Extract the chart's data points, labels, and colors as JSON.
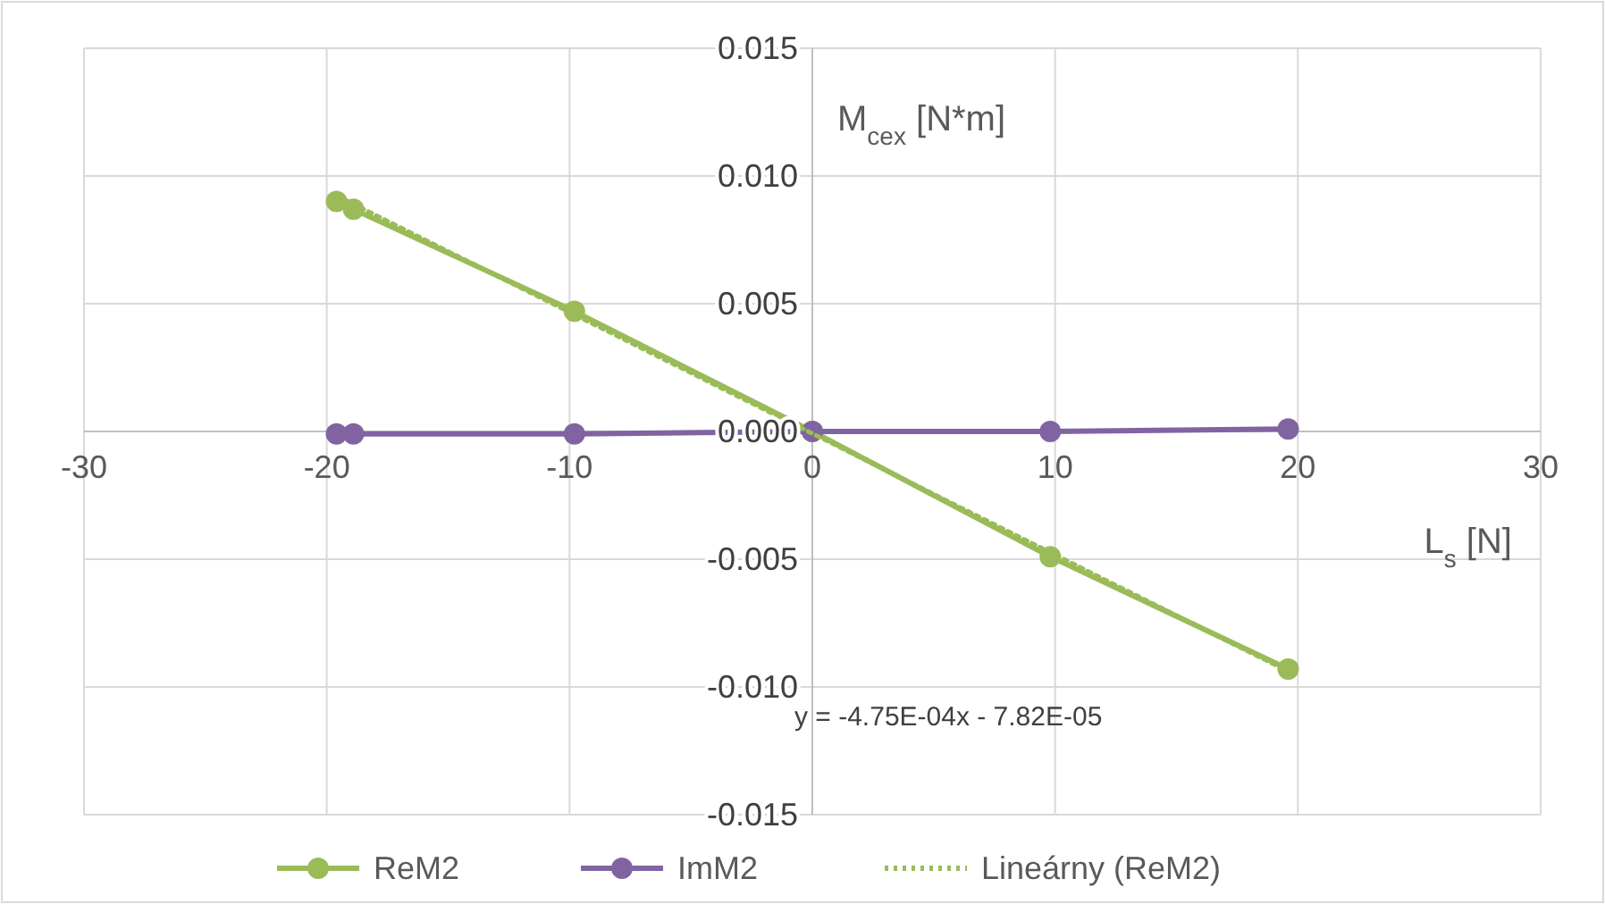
{
  "chart_data": {
    "type": "line",
    "xlabel": "L$_{s}$ [N]",
    "ylabel": "M$_{cex}$ [N*m]",
    "xlim": [
      -30,
      30
    ],
    "xticks": [
      -30,
      -20,
      -10,
      0,
      10,
      20,
      30
    ],
    "ylim": [
      -0.015,
      0.015
    ],
    "yticks": [
      {
        "value": -0.015,
        "label": "-0.015"
      },
      {
        "value": -0.01,
        "label": "-0.010"
      },
      {
        "value": -0.005,
        "label": "-0.005"
      },
      {
        "value": 0,
        "label": "0.000"
      },
      {
        "value": 0.005,
        "label": "0.005"
      },
      {
        "value": 0.01,
        "label": "0.010"
      },
      {
        "value": 0.015,
        "label": "0.015"
      }
    ],
    "grid": true,
    "legend": "bottom",
    "marker": "circle",
    "line_style": "solid",
    "annotations": [
      "y = -4.75E-04x - 7.82E-05"
    ],
    "series": [
      {
        "name": "ReM2",
        "color": "#9bbb59",
        "x": [
          -19.6,
          -18.9,
          -9.8,
          0,
          9.8,
          19.6
        ],
        "values": [
          0.009,
          0.0087,
          0.0047,
          0,
          -0.0049,
          -0.0093
        ]
      },
      {
        "name": "ImM2",
        "color": "#8064a2",
        "x": [
          -19.6,
          -18.9,
          -9.8,
          0,
          9.8,
          19.6
        ],
        "values": [
          -0.0001,
          -0.0001,
          -0.0001,
          0,
          0,
          0.0001
        ]
      },
      {
        "name": "Lineárny (ReM2)",
        "color": "#9bbb59",
        "marker": "none",
        "line_style": "dotted",
        "x": [
          -19.6,
          19.6
        ],
        "values": [
          0.00923,
          -0.00939
        ]
      }
    ]
  }
}
